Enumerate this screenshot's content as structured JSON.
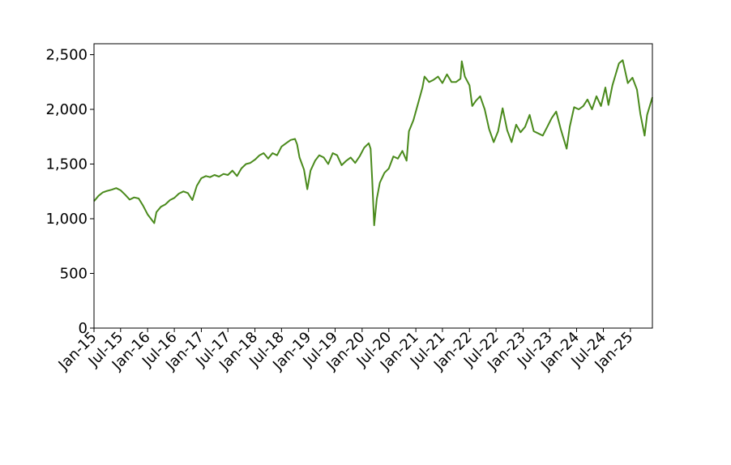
{
  "chart_data": {
    "type": "line",
    "title": "",
    "xlabel": "",
    "ylabel": "",
    "ylim": [
      0,
      2600
    ],
    "xlim": [
      "2015-01-01",
      "2025-05-31"
    ],
    "y_ticks": [
      {
        "value": 0,
        "label": "0"
      },
      {
        "value": 500,
        "label": "500"
      },
      {
        "value": 1000,
        "label": "1,000"
      },
      {
        "value": 1500,
        "label": "1,500"
      },
      {
        "value": 2000,
        "label": "2,000"
      },
      {
        "value": 2500,
        "label": "2,500"
      }
    ],
    "x_ticks": [
      {
        "date": "2015-01-01",
        "label": "Jan-15"
      },
      {
        "date": "2015-07-01",
        "label": "Jul-15"
      },
      {
        "date": "2016-01-01",
        "label": "Jan-16"
      },
      {
        "date": "2016-07-01",
        "label": "Jul-16"
      },
      {
        "date": "2017-01-01",
        "label": "Jan-17"
      },
      {
        "date": "2017-07-01",
        "label": "Jul-17"
      },
      {
        "date": "2018-01-01",
        "label": "Jan-18"
      },
      {
        "date": "2018-07-01",
        "label": "Jul-18"
      },
      {
        "date": "2019-01-01",
        "label": "Jan-19"
      },
      {
        "date": "2019-07-01",
        "label": "Jul-19"
      },
      {
        "date": "2020-01-01",
        "label": "Jan-20"
      },
      {
        "date": "2020-07-01",
        "label": "Jul-20"
      },
      {
        "date": "2021-01-01",
        "label": "Jan-21"
      },
      {
        "date": "2021-07-01",
        "label": "Jul-21"
      },
      {
        "date": "2022-01-01",
        "label": "Jan-22"
      },
      {
        "date": "2022-07-01",
        "label": "Jul-22"
      },
      {
        "date": "2023-01-01",
        "label": "Jan-23"
      },
      {
        "date": "2023-07-01",
        "label": "Jul-23"
      },
      {
        "date": "2024-01-01",
        "label": "Jan-24"
      },
      {
        "date": "2024-07-01",
        "label": "Jul-24"
      },
      {
        "date": "2025-01-01",
        "label": "Jan-25"
      }
    ],
    "grid": false,
    "line_color": "#4a8a1c",
    "series": [
      {
        "name": "",
        "points": [
          [
            "2015-01-01",
            1160
          ],
          [
            "2015-02-01",
            1210
          ],
          [
            "2015-03-01",
            1240
          ],
          [
            "2015-04-01",
            1255
          ],
          [
            "2015-05-01",
            1265
          ],
          [
            "2015-06-01",
            1280
          ],
          [
            "2015-07-01",
            1260
          ],
          [
            "2015-08-01",
            1220
          ],
          [
            "2015-09-01",
            1175
          ],
          [
            "2015-10-01",
            1195
          ],
          [
            "2015-11-01",
            1185
          ],
          [
            "2015-12-01",
            1120
          ],
          [
            "2016-01-01",
            1040
          ],
          [
            "2016-02-15",
            960
          ],
          [
            "2016-03-01",
            1060
          ],
          [
            "2016-04-01",
            1110
          ],
          [
            "2016-05-01",
            1130
          ],
          [
            "2016-06-01",
            1170
          ],
          [
            "2016-07-01",
            1190
          ],
          [
            "2016-08-01",
            1230
          ],
          [
            "2016-09-01",
            1250
          ],
          [
            "2016-10-01",
            1235
          ],
          [
            "2016-11-01",
            1170
          ],
          [
            "2016-12-01",
            1300
          ],
          [
            "2017-01-01",
            1370
          ],
          [
            "2017-02-01",
            1390
          ],
          [
            "2017-03-01",
            1380
          ],
          [
            "2017-04-01",
            1400
          ],
          [
            "2017-05-01",
            1385
          ],
          [
            "2017-06-01",
            1410
          ],
          [
            "2017-07-01",
            1400
          ],
          [
            "2017-08-01",
            1440
          ],
          [
            "2017-09-01",
            1390
          ],
          [
            "2017-10-01",
            1460
          ],
          [
            "2017-11-01",
            1500
          ],
          [
            "2017-12-01",
            1510
          ],
          [
            "2018-01-01",
            1540
          ],
          [
            "2018-02-01",
            1580
          ],
          [
            "2018-03-01",
            1600
          ],
          [
            "2018-04-01",
            1550
          ],
          [
            "2018-05-01",
            1600
          ],
          [
            "2018-06-01",
            1580
          ],
          [
            "2018-07-01",
            1660
          ],
          [
            "2018-08-01",
            1690
          ],
          [
            "2018-09-01",
            1720
          ],
          [
            "2018-10-01",
            1730
          ],
          [
            "2018-10-15",
            1680
          ],
          [
            "2018-11-01",
            1560
          ],
          [
            "2018-12-01",
            1450
          ],
          [
            "2018-12-24",
            1270
          ],
          [
            "2019-01-15",
            1440
          ],
          [
            "2019-02-15",
            1530
          ],
          [
            "2019-03-15",
            1580
          ],
          [
            "2019-04-15",
            1560
          ],
          [
            "2019-05-15",
            1500
          ],
          [
            "2019-06-15",
            1600
          ],
          [
            "2019-07-15",
            1580
          ],
          [
            "2019-08-15",
            1490
          ],
          [
            "2019-09-15",
            1530
          ],
          [
            "2019-10-15",
            1560
          ],
          [
            "2019-11-15",
            1510
          ],
          [
            "2019-12-15",
            1570
          ],
          [
            "2020-01-15",
            1650
          ],
          [
            "2020-02-15",
            1690
          ],
          [
            "2020-02-28",
            1640
          ],
          [
            "2020-03-10",
            1350
          ],
          [
            "2020-03-23",
            940
          ],
          [
            "2020-04-10",
            1180
          ],
          [
            "2020-05-01",
            1330
          ],
          [
            "2020-06-01",
            1420
          ],
          [
            "2020-07-01",
            1460
          ],
          [
            "2020-08-01",
            1570
          ],
          [
            "2020-09-01",
            1550
          ],
          [
            "2020-10-01",
            1620
          ],
          [
            "2020-10-30",
            1530
          ],
          [
            "2020-11-15",
            1800
          ],
          [
            "2020-12-15",
            1900
          ],
          [
            "2021-01-15",
            2050
          ],
          [
            "2021-02-15",
            2200
          ],
          [
            "2021-03-01",
            2300
          ],
          [
            "2021-04-01",
            2250
          ],
          [
            "2021-05-01",
            2270
          ],
          [
            "2021-06-01",
            2300
          ],
          [
            "2021-07-01",
            2240
          ],
          [
            "2021-08-01",
            2320
          ],
          [
            "2021-09-01",
            2250
          ],
          [
            "2021-10-01",
            2250
          ],
          [
            "2021-11-01",
            2280
          ],
          [
            "2021-11-10",
            2440
          ],
          [
            "2021-12-01",
            2300
          ],
          [
            "2022-01-01",
            2220
          ],
          [
            "2022-01-20",
            2030
          ],
          [
            "2022-02-15",
            2080
          ],
          [
            "2022-03-15",
            2120
          ],
          [
            "2022-04-15",
            2000
          ],
          [
            "2022-05-15",
            1820
          ],
          [
            "2022-06-15",
            1700
          ],
          [
            "2022-07-15",
            1800
          ],
          [
            "2022-08-15",
            2010
          ],
          [
            "2022-09-15",
            1810
          ],
          [
            "2022-10-15",
            1700
          ],
          [
            "2022-11-15",
            1860
          ],
          [
            "2022-12-15",
            1790
          ],
          [
            "2023-01-15",
            1840
          ],
          [
            "2023-02-15",
            1950
          ],
          [
            "2023-03-15",
            1800
          ],
          [
            "2023-04-15",
            1780
          ],
          [
            "2023-05-15",
            1760
          ],
          [
            "2023-06-15",
            1840
          ],
          [
            "2023-07-15",
            1920
          ],
          [
            "2023-08-15",
            1980
          ],
          [
            "2023-09-15",
            1820
          ],
          [
            "2023-10-25",
            1640
          ],
          [
            "2023-11-15",
            1840
          ],
          [
            "2023-12-15",
            2020
          ],
          [
            "2024-01-15",
            2000
          ],
          [
            "2024-02-15",
            2030
          ],
          [
            "2024-03-15",
            2090
          ],
          [
            "2024-04-15",
            2000
          ],
          [
            "2024-05-15",
            2120
          ],
          [
            "2024-06-15",
            2030
          ],
          [
            "2024-07-15",
            2200
          ],
          [
            "2024-08-05",
            2040
          ],
          [
            "2024-09-01",
            2220
          ],
          [
            "2024-10-15",
            2420
          ],
          [
            "2024-11-10",
            2450
          ],
          [
            "2024-12-15",
            2240
          ],
          [
            "2025-01-15",
            2290
          ],
          [
            "2025-02-15",
            2180
          ],
          [
            "2025-03-10",
            1960
          ],
          [
            "2025-04-08",
            1760
          ],
          [
            "2025-04-25",
            1950
          ],
          [
            "2025-05-31",
            2110
          ]
        ]
      }
    ]
  }
}
